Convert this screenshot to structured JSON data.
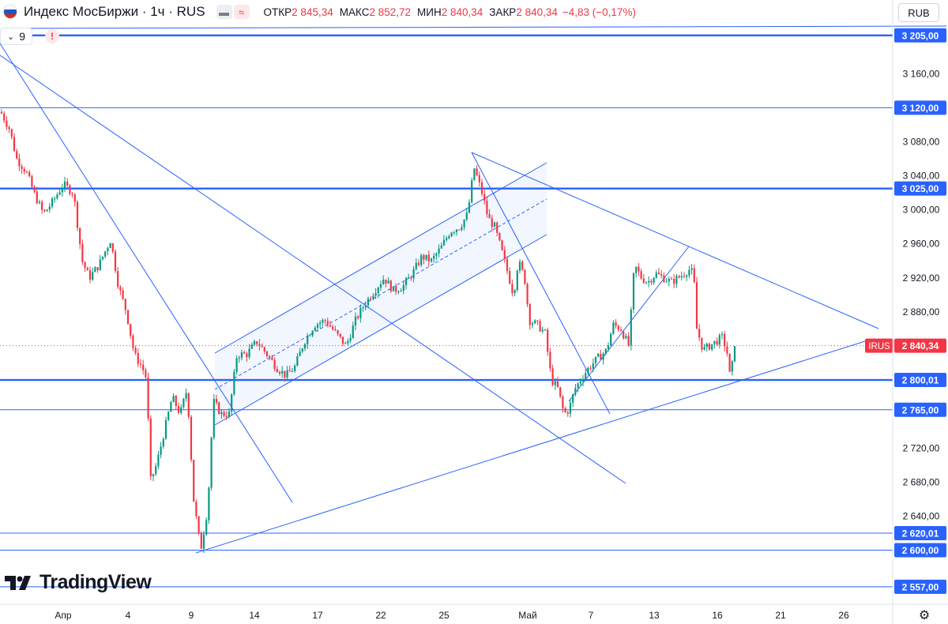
{
  "header": {
    "title": "Индекс МосБиржи · 1ч · RUS",
    "open_label": "ОТКР",
    "open_value": "2 845,34",
    "high_label": "МАКС",
    "high_value": "2 852,72",
    "low_label": "МИН",
    "low_value": "2 840,34",
    "close_label": "ЗАКР",
    "close_value": "2 840,34",
    "change": "−4,83 (−0,17%)"
  },
  "indicators": {
    "count": "9"
  },
  "currency_button": "RUB",
  "logo_text": "TradingView",
  "colors": {
    "up": "#089981",
    "down": "#f23645",
    "lines": "#2962ff",
    "axis_label_bg": "#2962ff"
  },
  "chart_data": {
    "type": "candlestick",
    "y_range": [
      2555,
      3215
    ],
    "y_ticks": [
      "3 160,00",
      "3 080,00",
      "3 040,00",
      "3 000,00",
      "2 960,00",
      "2 920,00",
      "2 880,00",
      "2 720,00",
      "2 680,00",
      "2 640,00"
    ],
    "x_ticks": [
      "Апр",
      "4",
      "9",
      "14",
      "17",
      "22",
      "25",
      "Май",
      "7",
      "13",
      "16",
      "21",
      "26"
    ],
    "horizontal_levels": [
      {
        "value": 3205.0,
        "label": "3 205,00",
        "bold": true
      },
      {
        "value": 3120.0,
        "label": "3 120,00",
        "bold": false
      },
      {
        "value": 3025.0,
        "label": "3 025,00",
        "bold": true
      },
      {
        "value": 2800.01,
        "label": "2 800,01",
        "bold": true
      },
      {
        "value": 2765.0,
        "label": "2 765,00",
        "bold": false
      },
      {
        "value": 2620.01,
        "label": "2 620,01",
        "bold": false
      },
      {
        "value": 2600.0,
        "label": "2 600,00",
        "bold": false
      },
      {
        "value": 2557.0,
        "label": "2 557,00",
        "bold": false
      }
    ],
    "last_price": {
      "value": 2840.34,
      "label": "2 840,34",
      "ticker": "IRUS"
    },
    "candle_anchors": [
      {
        "x": 1.0,
        "y": 3115
      },
      {
        "x": 12.0,
        "y": 3095
      },
      {
        "x": 21.0,
        "y": 3060
      },
      {
        "x": 33.0,
        "y": 3045
      },
      {
        "x": 43.0,
        "y": 3020
      },
      {
        "x": 55.0,
        "y": 2995
      },
      {
        "x": 67.0,
        "y": 3010
      },
      {
        "x": 80.0,
        "y": 3030
      },
      {
        "x": 93.0,
        "y": 3020
      },
      {
        "x": 104.0,
        "y": 2940
      },
      {
        "x": 113.0,
        "y": 2920
      },
      {
        "x": 125.0,
        "y": 2935
      },
      {
        "x": 140.0,
        "y": 2965
      },
      {
        "x": 150.0,
        "y": 2910
      },
      {
        "x": 160.0,
        "y": 2880
      },
      {
        "x": 170.0,
        "y": 2830
      },
      {
        "x": 180.0,
        "y": 2815
      },
      {
        "x": 186.0,
        "y": 2800
      },
      {
        "x": 190.0,
        "y": 2680
      },
      {
        "x": 198.0,
        "y": 2700
      },
      {
        "x": 208.0,
        "y": 2740
      },
      {
        "x": 218.0,
        "y": 2780
      },
      {
        "x": 228.0,
        "y": 2760
      },
      {
        "x": 237.0,
        "y": 2790
      },
      {
        "x": 245.0,
        "y": 2660
      },
      {
        "x": 254.0,
        "y": 2600
      },
      {
        "x": 263.0,
        "y": 2650
      },
      {
        "x": 270.0,
        "y": 2775
      },
      {
        "x": 280.0,
        "y": 2760
      },
      {
        "x": 290.0,
        "y": 2760
      },
      {
        "x": 300.0,
        "y": 2830
      },
      {
        "x": 312.0,
        "y": 2830
      },
      {
        "x": 325.0,
        "y": 2845
      },
      {
        "x": 338.0,
        "y": 2830
      },
      {
        "x": 350.0,
        "y": 2815
      },
      {
        "x": 362.0,
        "y": 2805
      },
      {
        "x": 373.0,
        "y": 2815
      },
      {
        "x": 385.0,
        "y": 2845
      },
      {
        "x": 398.0,
        "y": 2865
      },
      {
        "x": 412.0,
        "y": 2870
      },
      {
        "x": 425.0,
        "y": 2855
      },
      {
        "x": 438.0,
        "y": 2840
      },
      {
        "x": 450.0,
        "y": 2870
      },
      {
        "x": 462.0,
        "y": 2890
      },
      {
        "x": 474.0,
        "y": 2905
      },
      {
        "x": 486.0,
        "y": 2920
      },
      {
        "x": 498.0,
        "y": 2905
      },
      {
        "x": 510.0,
        "y": 2910
      },
      {
        "x": 522.0,
        "y": 2925
      },
      {
        "x": 534.0,
        "y": 2945
      },
      {
        "x": 546.0,
        "y": 2940
      },
      {
        "x": 558.0,
        "y": 2955
      },
      {
        "x": 570.0,
        "y": 2975
      },
      {
        "x": 582.0,
        "y": 2980
      },
      {
        "x": 592.0,
        "y": 2995
      },
      {
        "x": 600.0,
        "y": 3050
      },
      {
        "x": 610.0,
        "y": 3020
      },
      {
        "x": 618.0,
        "y": 2990
      },
      {
        "x": 626.0,
        "y": 2980
      },
      {
        "x": 634.0,
        "y": 2955
      },
      {
        "x": 643.0,
        "y": 2925
      },
      {
        "x": 650.0,
        "y": 2900
      },
      {
        "x": 656.0,
        "y": 2940
      },
      {
        "x": 664.0,
        "y": 2920
      },
      {
        "x": 670.0,
        "y": 2870
      },
      {
        "x": 680.0,
        "y": 2865
      },
      {
        "x": 690.0,
        "y": 2855
      },
      {
        "x": 698.0,
        "y": 2800
      },
      {
        "x": 706.0,
        "y": 2790
      },
      {
        "x": 714.0,
        "y": 2760
      },
      {
        "x": 720.0,
        "y": 2765
      },
      {
        "x": 728.0,
        "y": 2790
      },
      {
        "x": 738.0,
        "y": 2805
      },
      {
        "x": 746.0,
        "y": 2815
      },
      {
        "x": 756.0,
        "y": 2825
      },
      {
        "x": 768.0,
        "y": 2835
      },
      {
        "x": 776.0,
        "y": 2865
      },
      {
        "x": 786.0,
        "y": 2860
      },
      {
        "x": 796.0,
        "y": 2840
      },
      {
        "x": 803.0,
        "y": 2935
      },
      {
        "x": 812.0,
        "y": 2920
      },
      {
        "x": 820.0,
        "y": 2915
      },
      {
        "x": 830.0,
        "y": 2925
      },
      {
        "x": 840.0,
        "y": 2920
      },
      {
        "x": 850.0,
        "y": 2915
      },
      {
        "x": 858.0,
        "y": 2920
      },
      {
        "x": 866.0,
        "y": 2925
      },
      {
        "x": 872.0,
        "y": 2930
      },
      {
        "x": 878.0,
        "y": 2925
      },
      {
        "x": 882.0,
        "y": 2860
      },
      {
        "x": 890.0,
        "y": 2835
      },
      {
        "x": 898.0,
        "y": 2840
      },
      {
        "x": 906.0,
        "y": 2845
      },
      {
        "x": 914.0,
        "y": 2850
      },
      {
        "x": 920.0,
        "y": 2835
      },
      {
        "x": 925.0,
        "y": 2795
      },
      {
        "x": 929.0,
        "y": 2845
      },
      {
        "x": 933.0,
        "y": 2840
      }
    ]
  }
}
